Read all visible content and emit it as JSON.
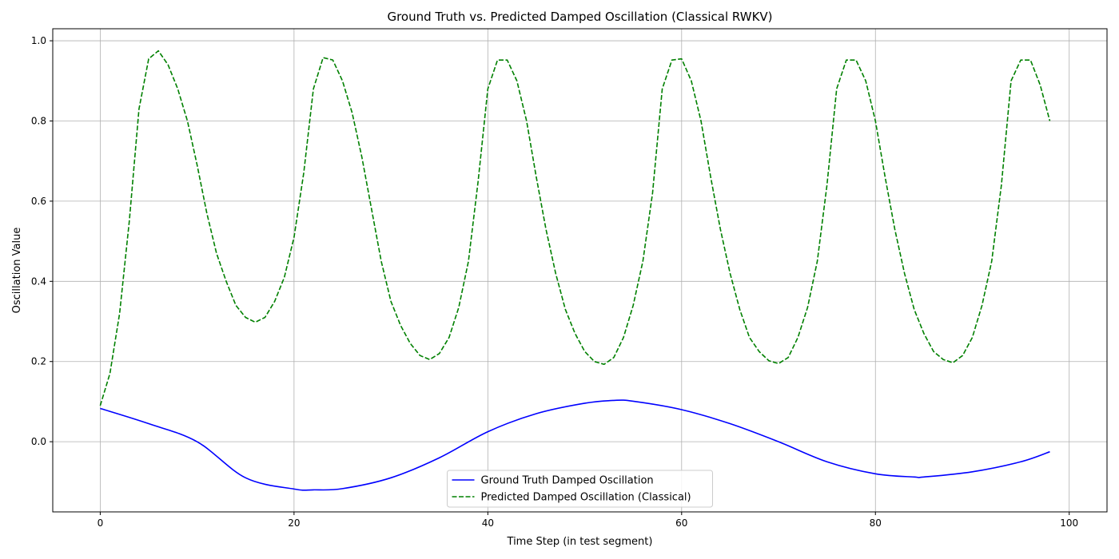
{
  "chart_data": {
    "type": "line",
    "title": "Ground Truth vs. Predicted Damped Oscillation (Classical RWKV)",
    "xlabel": "Time Step (in test segment)",
    "ylabel": "Oscillation Value",
    "xlim": [
      -4.9,
      103.9
    ],
    "ylim": [
      -0.175,
      1.03
    ],
    "xticks": [
      0,
      20,
      40,
      60,
      80,
      100
    ],
    "yticks": [
      0.0,
      0.2,
      0.4,
      0.6,
      0.8,
      1.0
    ],
    "xtick_labels": [
      "0",
      "20",
      "40",
      "60",
      "80",
      "100"
    ],
    "ytick_labels": [
      "0.0",
      "0.2",
      "0.4",
      "0.6",
      "0.8",
      "1.0"
    ],
    "grid": true,
    "legend_position": "bottom-center",
    "series": [
      {
        "name": "Ground Truth Damped Oscillation",
        "color": "#0000ff",
        "style": "solid",
        "x": [
          0,
          5,
          10,
          15,
          20,
          22,
          25,
          30,
          35,
          40,
          45,
          50,
          53,
          55,
          60,
          65,
          70,
          75,
          80,
          84,
          85,
          90,
          95,
          98
        ],
        "y": [
          0.083,
          0.045,
          0.0,
          -0.09,
          -0.118,
          -0.12,
          -0.117,
          -0.09,
          -0.04,
          0.025,
          0.07,
          0.096,
          0.103,
          0.101,
          0.08,
          0.045,
          0.0,
          -0.05,
          -0.08,
          -0.088,
          -0.088,
          -0.075,
          -0.05,
          -0.025
        ]
      },
      {
        "name": "Predicted Damped Oscillation (Classical)",
        "color": "#008000",
        "style": "dashed",
        "x": [
          0,
          1,
          2,
          3,
          4,
          5,
          6,
          7,
          8,
          9,
          10,
          11,
          12,
          13,
          14,
          15,
          16,
          17,
          18,
          19,
          20,
          21,
          22,
          23,
          24,
          25,
          26,
          27,
          28,
          29,
          30,
          31,
          32,
          33,
          34,
          35,
          36,
          37,
          38,
          39,
          40,
          41,
          42,
          43,
          44,
          45,
          46,
          47,
          48,
          49,
          50,
          51,
          52,
          53,
          54,
          55,
          56,
          57,
          58,
          59,
          60,
          61,
          62,
          63,
          64,
          65,
          66,
          67,
          68,
          69,
          70,
          71,
          72,
          73,
          74,
          75,
          76,
          77,
          78,
          79,
          80,
          81,
          82,
          83,
          84,
          85,
          86,
          87,
          88,
          89,
          90,
          91,
          92,
          93,
          94,
          95,
          96,
          97,
          98
        ],
        "y": [
          0.09,
          0.17,
          0.32,
          0.55,
          0.83,
          0.955,
          0.975,
          0.94,
          0.88,
          0.8,
          0.69,
          0.57,
          0.47,
          0.4,
          0.34,
          0.31,
          0.298,
          0.31,
          0.35,
          0.41,
          0.51,
          0.67,
          0.88,
          0.958,
          0.952,
          0.9,
          0.82,
          0.71,
          0.58,
          0.45,
          0.35,
          0.29,
          0.245,
          0.215,
          0.205,
          0.22,
          0.26,
          0.335,
          0.45,
          0.65,
          0.88,
          0.952,
          0.952,
          0.9,
          0.8,
          0.66,
          0.53,
          0.42,
          0.33,
          0.27,
          0.225,
          0.2,
          0.193,
          0.21,
          0.26,
          0.34,
          0.45,
          0.62,
          0.88,
          0.952,
          0.955,
          0.9,
          0.8,
          0.66,
          0.53,
          0.42,
          0.33,
          0.26,
          0.225,
          0.202,
          0.195,
          0.21,
          0.26,
          0.335,
          0.45,
          0.64,
          0.88,
          0.952,
          0.952,
          0.9,
          0.8,
          0.66,
          0.53,
          0.42,
          0.33,
          0.27,
          0.225,
          0.205,
          0.197,
          0.215,
          0.26,
          0.34,
          0.45,
          0.64,
          0.9,
          0.952,
          0.952,
          0.89,
          0.8
        ]
      }
    ]
  }
}
